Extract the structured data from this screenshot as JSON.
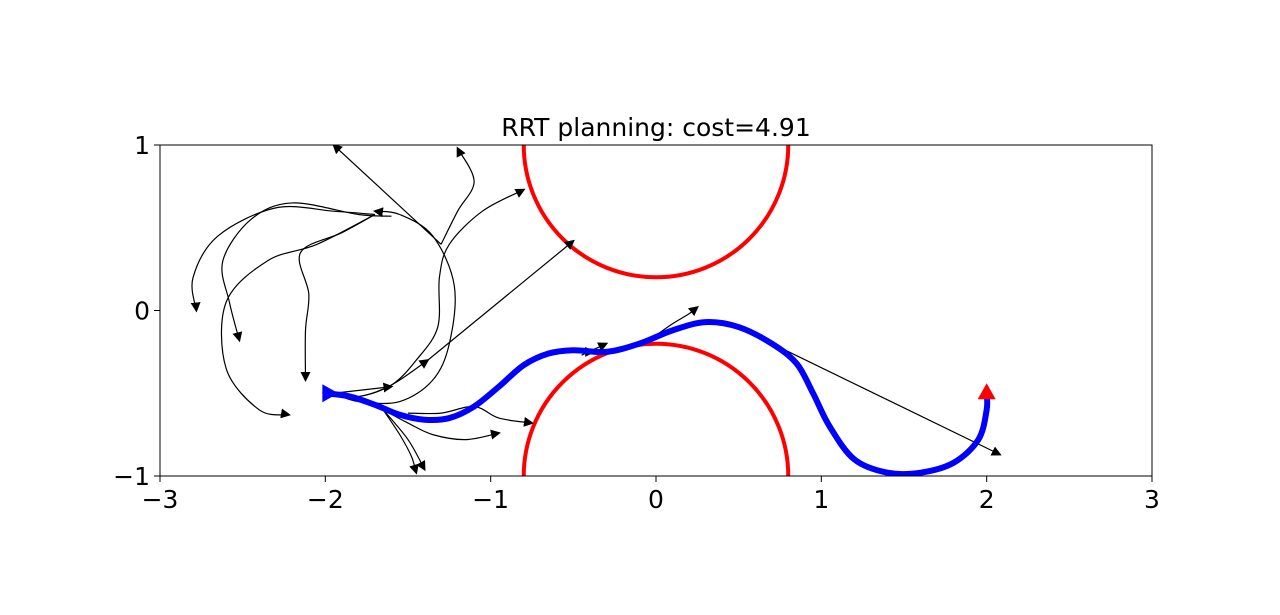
{
  "chart_data": {
    "type": "line",
    "title": "RRT planning: cost=4.91",
    "xlabel": "",
    "ylabel": "",
    "xlim": [
      -3,
      3
    ],
    "ylim": [
      -1,
      1
    ],
    "x_ticks": [
      -3,
      -2,
      -1,
      0,
      1,
      2,
      3
    ],
    "y_ticks": [
      -1,
      0,
      1
    ],
    "x_tick_labels": [
      "−3",
      "−2",
      "−1",
      "0",
      "1",
      "2",
      "3"
    ],
    "y_tick_labels": [
      "−1",
      "0",
      "1"
    ],
    "grid": false,
    "colors": {
      "obstacle": "#ff0000",
      "path": "#0000ff",
      "tree": "#000000",
      "goal": "#ff0000",
      "start": "#0000ff"
    },
    "obstacles": [
      {
        "shape": "circle",
        "center": [
          0,
          1
        ],
        "radius": 0.8
      },
      {
        "shape": "circle",
        "center": [
          0,
          -1
        ],
        "radius": 0.8
      }
    ],
    "start": {
      "x": -2.0,
      "y": -0.5,
      "marker": "triangle-right"
    },
    "goal": {
      "x": 2.0,
      "y": -0.5,
      "marker": "triangle-up"
    },
    "path": [
      [
        -2.0,
        -0.5
      ],
      [
        -1.85,
        -0.52
      ],
      [
        -1.7,
        -0.57
      ],
      [
        -1.55,
        -0.63
      ],
      [
        -1.4,
        -0.66
      ],
      [
        -1.25,
        -0.65
      ],
      [
        -1.1,
        -0.58
      ],
      [
        -0.95,
        -0.46
      ],
      [
        -0.8,
        -0.33
      ],
      [
        -0.65,
        -0.26
      ],
      [
        -0.5,
        -0.24
      ],
      [
        -0.3,
        -0.25
      ],
      [
        -0.1,
        -0.2
      ],
      [
        0.1,
        -0.12
      ],
      [
        0.3,
        -0.07
      ],
      [
        0.5,
        -0.1
      ],
      [
        0.7,
        -0.2
      ],
      [
        0.85,
        -0.32
      ],
      [
        0.95,
        -0.5
      ],
      [
        1.05,
        -0.7
      ],
      [
        1.2,
        -0.9
      ],
      [
        1.4,
        -0.98
      ],
      [
        1.6,
        -0.98
      ],
      [
        1.8,
        -0.92
      ],
      [
        1.95,
        -0.78
      ],
      [
        2.0,
        -0.6
      ],
      [
        2.0,
        -0.5
      ]
    ],
    "tree_edges": [
      [
        [
          -1.95,
          -0.5
        ],
        [
          -1.8,
          -0.52
        ],
        [
          -1.6,
          -0.45
        ],
        [
          -1.45,
          -0.3
        ],
        [
          -1.32,
          -0.1
        ],
        [
          -1.31,
          0.2
        ],
        [
          -1.25,
          0.4
        ],
        [
          -1.05,
          0.6
        ],
        [
          -0.8,
          0.73
        ]
      ],
      [
        [
          -1.95,
          -0.5
        ],
        [
          -1.6,
          -0.46
        ]
      ],
      [
        [
          -1.95,
          -0.5
        ],
        [
          -1.8,
          -0.55
        ],
        [
          -1.55,
          -0.55
        ],
        [
          -1.35,
          -0.42
        ],
        [
          -1.25,
          -0.2
        ],
        [
          -1.22,
          0.15
        ],
        [
          -1.35,
          0.45
        ],
        [
          -1.55,
          0.58
        ],
        [
          -1.7,
          0.6
        ]
      ],
      [
        [
          -1.95,
          -0.5
        ],
        [
          -1.8,
          -0.52
        ],
        [
          -1.6,
          -0.45
        ],
        [
          -1.38,
          -0.3
        ]
      ],
      [
        [
          -1.38,
          -0.3
        ],
        [
          -0.5,
          0.42
        ]
      ],
      [
        [
          -1.3,
          0.4
        ],
        [
          -1.95,
          1.0
        ]
      ],
      [
        [
          -1.3,
          0.4
        ],
        [
          -1.2,
          0.6
        ],
        [
          -1.1,
          0.78
        ],
        [
          -1.2,
          0.98
        ]
      ],
      [
        [
          -1.6,
          0.57
        ],
        [
          -1.8,
          0.58
        ],
        [
          -2.2,
          0.65
        ],
        [
          -2.45,
          0.55
        ],
        [
          -2.62,
          0.3
        ],
        [
          -2.58,
          0.05
        ],
        [
          -2.52,
          -0.18
        ]
      ],
      [
        [
          -1.7,
          0.58
        ],
        [
          -1.95,
          0.6
        ],
        [
          -2.3,
          0.62
        ],
        [
          -2.65,
          0.45
        ],
        [
          -2.8,
          0.2
        ],
        [
          -2.78,
          0.0
        ]
      ],
      [
        [
          -1.7,
          0.58
        ],
        [
          -1.9,
          0.47
        ],
        [
          -2.15,
          0.35
        ],
        [
          -2.1,
          0.1
        ],
        [
          -2.12,
          -0.12
        ],
        [
          -2.12,
          -0.42
        ]
      ],
      [
        [
          -1.7,
          0.58
        ],
        [
          -2.05,
          0.4
        ],
        [
          -2.35,
          0.3
        ],
        [
          -2.6,
          0.05
        ],
        [
          -2.6,
          -0.35
        ],
        [
          -2.4,
          -0.6
        ],
        [
          -2.22,
          -0.63
        ]
      ],
      [
        [
          -1.65,
          -0.6
        ],
        [
          -1.55,
          -0.75
        ],
        [
          -1.48,
          -0.88
        ],
        [
          -1.45,
          -0.98
        ]
      ],
      [
        [
          -1.65,
          -0.6
        ],
        [
          -1.5,
          -0.78
        ],
        [
          -1.4,
          -0.96
        ]
      ],
      [
        [
          -1.5,
          -0.62
        ],
        [
          -1.3,
          -0.62
        ],
        [
          -1.1,
          -0.58
        ],
        [
          -0.95,
          -0.65
        ],
        [
          -0.75,
          -0.68
        ]
      ],
      [
        [
          -1.65,
          -0.6
        ],
        [
          -1.5,
          -0.68
        ],
        [
          -1.35,
          -0.75
        ],
        [
          -1.15,
          -0.78
        ],
        [
          -0.95,
          -0.74
        ]
      ],
      [
        [
          -0.45,
          -0.27
        ],
        [
          -0.3,
          -0.2
        ]
      ],
      [
        [
          0.0,
          -0.15
        ],
        [
          0.1,
          -0.08
        ],
        [
          0.2,
          -0.02
        ],
        [
          0.25,
          0.02
        ]
      ],
      [
        [
          0.7,
          -0.2
        ],
        [
          2.08,
          -0.87
        ]
      ],
      [
        [
          -0.62,
          -0.25
        ],
        [
          -0.38,
          -0.25
        ]
      ]
    ]
  }
}
